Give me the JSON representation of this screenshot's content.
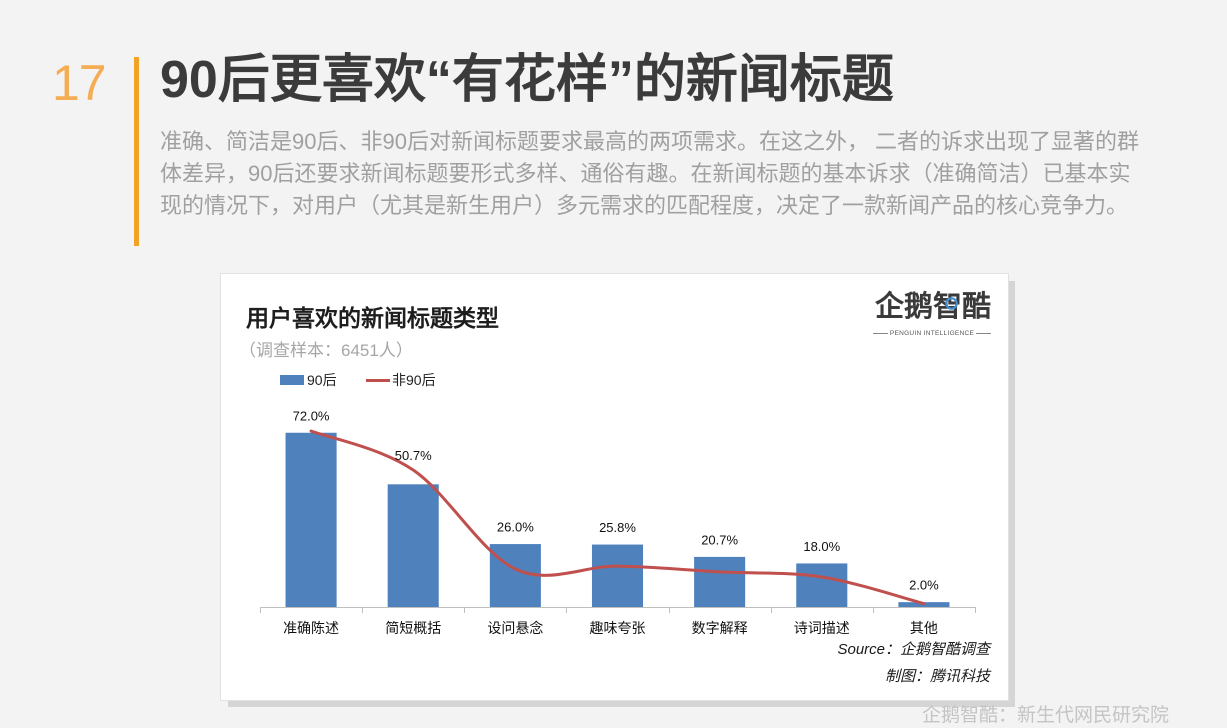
{
  "slide": {
    "page_number": "17",
    "title": "90后更喜欢“有花样”的新闻标题",
    "description_lines": [
      "准确、简洁是90后、非90后对新闻标题要求最高的两项需求。在这之外， 二者的诉求出现了显著的群",
      "体差异，90后还要求新闻标题要形式多样、通俗有趣。在新闻标题的基本诉求（准确简洁）已基本实",
      "现的情况下，对用户（尤其是新生用户）多元需求的匹配程度，决定了一款新闻产品的核心竞争力。"
    ]
  },
  "chart_card": {
    "logo": {
      "name": "企鹅智酷",
      "tagline": "PENGUIN INTELLIGENCE",
      "lens_icon": "lens-ring-icon"
    },
    "source": "Source：企鹅智酷调查",
    "credit": "制图：腾讯科技"
  },
  "chart_data": {
    "type": "bar",
    "title": "用户喜欢的新闻标题类型",
    "subtitle": "（调查样本：6451人）",
    "categories": [
      "准确陈述",
      "简短概括",
      "设问悬念",
      "趣味夸张",
      "数字解释",
      "诗词描述",
      "其他"
    ],
    "series": [
      {
        "name": "90后",
        "type": "bar",
        "color": "#4f81bd",
        "values": [
          72.0,
          50.7,
          26.0,
          25.8,
          20.7,
          18.0,
          2.0
        ],
        "data_labels": [
          "72.0%",
          "50.7%",
          "26.0%",
          "25.8%",
          "20.7%",
          "18.0%",
          "2.0%"
        ]
      },
      {
        "name": "非90后",
        "type": "line",
        "color": "#c0504d",
        "smooth": true,
        "values": [
          72.7,
          56.6,
          15.7,
          16.9,
          14.5,
          12.4,
          1.4
        ]
      }
    ],
    "xlabel": "",
    "ylabel": "",
    "ylim": [
      0,
      80
    ],
    "grid": false,
    "legend": "top-left"
  },
  "footer": {
    "watermark": "企鹅智酷：新生代网民研究院"
  },
  "colors": {
    "accent": "#f2a225",
    "page_number": "#f4ad52",
    "background": "#f3f3f3"
  }
}
